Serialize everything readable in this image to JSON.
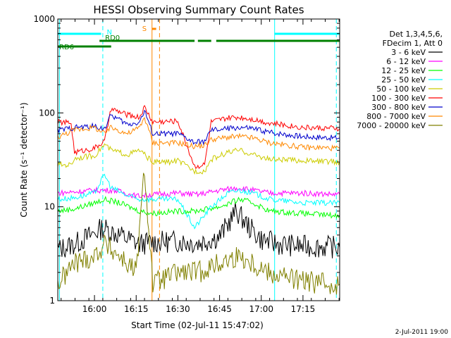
{
  "chart_data": {
    "type": "line",
    "title": "HESSI Observing Summary Count Rates",
    "xlabel": "Start Time (02-Jul-11 15:47:02)",
    "ylabel": "Count Rate (s⁻¹ detector⁻¹)",
    "yscale": "log",
    "ylim": [
      1,
      1000
    ],
    "xlim_minutes": [
      15.78,
      17.47
    ],
    "x_tick_labels": [
      "16:00",
      "16:15",
      "16:30",
      "16:45",
      "17:00",
      "17:15"
    ],
    "x_tick_values": [
      16.0,
      16.25,
      16.5,
      16.75,
      17.0,
      17.25
    ],
    "y_tick_labels": [
      "1",
      "10",
      "100",
      "1000"
    ],
    "y_tick_values": [
      1,
      10,
      100,
      1000
    ],
    "grid": false,
    "legend_placement": "right",
    "legend_header": [
      "Det 1,3,4,5,6,",
      "FDecim 1, Att 0"
    ],
    "series": [
      {
        "name": "3 - 6 keV",
        "color": "#000000",
        "points": [
          [
            15.78,
            3.5
          ],
          [
            15.88,
            4
          ],
          [
            15.98,
            5
          ],
          [
            16.05,
            6
          ],
          [
            16.15,
            5
          ],
          [
            16.27,
            4
          ],
          [
            16.35,
            4.2
          ],
          [
            16.5,
            4.3
          ],
          [
            16.62,
            4.1
          ],
          [
            16.75,
            4.8
          ],
          [
            16.85,
            9
          ],
          [
            16.93,
            6
          ],
          [
            17.0,
            4.5
          ],
          [
            17.1,
            4
          ],
          [
            17.25,
            3.8
          ],
          [
            17.47,
            3.7
          ]
        ]
      },
      {
        "name": "6 - 12 keV",
        "color": "#ff00ff",
        "points": [
          [
            15.78,
            14
          ],
          [
            15.9,
            14.5
          ],
          [
            16.0,
            15
          ],
          [
            16.12,
            15
          ],
          [
            16.25,
            13
          ],
          [
            16.35,
            13.5
          ],
          [
            16.5,
            14
          ],
          [
            16.62,
            13.5
          ],
          [
            16.75,
            15
          ],
          [
            16.87,
            16
          ],
          [
            16.95,
            15
          ],
          [
            17.05,
            14
          ],
          [
            17.25,
            14
          ],
          [
            17.47,
            13.5
          ]
        ]
      },
      {
        "name": "12 - 25 keV",
        "color": "#00ff00",
        "points": [
          [
            15.78,
            9
          ],
          [
            15.88,
            9.5
          ],
          [
            16.0,
            11
          ],
          [
            16.06,
            12
          ],
          [
            16.15,
            11
          ],
          [
            16.27,
            9
          ],
          [
            16.35,
            8.5
          ],
          [
            16.5,
            9
          ],
          [
            16.6,
            9
          ],
          [
            16.75,
            10
          ],
          [
            16.87,
            12
          ],
          [
            16.95,
            11
          ],
          [
            17.05,
            9
          ],
          [
            17.25,
            8.5
          ],
          [
            17.47,
            8
          ]
        ]
      },
      {
        "name": "25 - 50 keV",
        "color": "#00ffff",
        "points": [
          [
            15.78,
            12
          ],
          [
            15.88,
            12.5
          ],
          [
            16.0,
            14
          ],
          [
            16.06,
            22
          ],
          [
            16.1,
            16
          ],
          [
            16.2,
            13
          ],
          [
            16.27,
            12
          ],
          [
            16.35,
            12
          ],
          [
            16.5,
            12
          ],
          [
            16.6,
            6
          ],
          [
            16.7,
            10
          ],
          [
            16.8,
            14
          ],
          [
            16.87,
            15
          ],
          [
            16.95,
            14
          ],
          [
            17.05,
            12
          ],
          [
            17.25,
            11
          ],
          [
            17.47,
            11
          ]
        ]
      },
      {
        "name": "50 - 100 keV",
        "color": "#cccc00",
        "points": [
          [
            15.78,
            28
          ],
          [
            15.86,
            28
          ],
          [
            15.88,
            33
          ],
          [
            16.0,
            35
          ],
          [
            16.06,
            46
          ],
          [
            16.1,
            40
          ],
          [
            16.2,
            36
          ],
          [
            16.27,
            40
          ],
          [
            16.35,
            30
          ],
          [
            16.45,
            30
          ],
          [
            16.5,
            31
          ],
          [
            16.6,
            24
          ],
          [
            16.66,
            24
          ],
          [
            16.7,
            32
          ],
          [
            16.8,
            38
          ],
          [
            16.87,
            40
          ],
          [
            16.95,
            36
          ],
          [
            17.05,
            32
          ],
          [
            17.25,
            31
          ],
          [
            17.47,
            30
          ]
        ]
      },
      {
        "name": "100 - 300 keV",
        "color": "#ff0000",
        "points": [
          [
            15.78,
            80
          ],
          [
            15.86,
            78
          ],
          [
            15.88,
            38
          ],
          [
            16.0,
            42
          ],
          [
            16.06,
            50
          ],
          [
            16.1,
            110
          ],
          [
            16.2,
            95
          ],
          [
            16.27,
            90
          ],
          [
            16.3,
            115
          ],
          [
            16.35,
            80
          ],
          [
            16.5,
            82
          ],
          [
            16.6,
            27
          ],
          [
            16.66,
            28
          ],
          [
            16.7,
            80
          ],
          [
            16.8,
            88
          ],
          [
            16.87,
            90
          ],
          [
            16.95,
            86
          ],
          [
            17.05,
            78
          ],
          [
            17.25,
            70
          ],
          [
            17.47,
            68
          ]
        ]
      },
      {
        "name": "300 - 800 keV",
        "color": "#0000cc",
        "points": [
          [
            15.78,
            65
          ],
          [
            15.88,
            70
          ],
          [
            16.0,
            72
          ],
          [
            16.06,
            68
          ],
          [
            16.1,
            95
          ],
          [
            16.2,
            75
          ],
          [
            16.27,
            80
          ],
          [
            16.3,
            105
          ],
          [
            16.35,
            60
          ],
          [
            16.5,
            60
          ],
          [
            16.6,
            48
          ],
          [
            16.66,
            50
          ],
          [
            16.7,
            65
          ],
          [
            16.8,
            68
          ],
          [
            16.87,
            70
          ],
          [
            16.95,
            68
          ],
          [
            17.05,
            62
          ],
          [
            17.25,
            56
          ],
          [
            17.47,
            54
          ]
        ]
      },
      {
        "name": "800 - 7000 keV",
        "color": "#ff8800",
        "points": [
          [
            15.78,
            55
          ],
          [
            15.88,
            66
          ],
          [
            16.0,
            70
          ],
          [
            16.06,
            60
          ],
          [
            16.1,
            70
          ],
          [
            16.2,
            60
          ],
          [
            16.27,
            70
          ],
          [
            16.3,
            90
          ],
          [
            16.35,
            48
          ],
          [
            16.5,
            48
          ],
          [
            16.6,
            44
          ],
          [
            16.66,
            45
          ],
          [
            16.7,
            52
          ],
          [
            16.8,
            55
          ],
          [
            16.87,
            56
          ],
          [
            16.95,
            54
          ],
          [
            17.05,
            48
          ],
          [
            17.25,
            43
          ],
          [
            17.47,
            42
          ]
        ]
      },
      {
        "name": "7000 - 20000 keV",
        "color": "#808000",
        "points": [
          [
            15.78,
            1.5
          ],
          [
            15.88,
            2.5
          ],
          [
            16.0,
            3
          ],
          [
            16.06,
            4
          ],
          [
            16.15,
            3
          ],
          [
            16.25,
            2
          ],
          [
            16.3,
            25
          ],
          [
            16.35,
            1.5
          ],
          [
            16.5,
            2
          ],
          [
            16.62,
            2
          ],
          [
            16.75,
            2.5
          ],
          [
            16.87,
            3
          ],
          [
            16.95,
            2.5
          ],
          [
            17.05,
            2
          ],
          [
            17.25,
            1.6
          ],
          [
            17.47,
            1.5
          ]
        ]
      }
    ],
    "flags": [
      {
        "name": "RD0",
        "color": "#008000",
        "segments": [
          [
            16.03,
            16.1
          ]
        ]
      },
      {
        "name": "RD6",
        "color": "#008000",
        "segments": [
          [
            15.78,
            16.1
          ]
        ]
      },
      {
        "name": "",
        "color": "#008000",
        "segments": [
          [
            16.1,
            16.6
          ],
          [
            16.62,
            16.7
          ],
          [
            16.73,
            17.47
          ]
        ]
      },
      {
        "name": "N",
        "color": "#00ffff",
        "segments": [
          [
            15.78,
            16.04
          ],
          [
            17.08,
            17.47
          ]
        ]
      },
      {
        "name": "S",
        "color": "#ff8800",
        "segments": [
          [
            16.345,
            16.37
          ]
        ]
      }
    ],
    "markers": [
      {
        "color": "#00ffff",
        "style": "dashed",
        "x": 16.05
      },
      {
        "color": "#00ffff",
        "style": "dashed",
        "x": 17.45
      },
      {
        "color": "#00ffff",
        "style": "solid",
        "x": 17.08
      },
      {
        "color": "#00ffff",
        "style": "solid",
        "x": 15.79
      },
      {
        "color": "#ff8800",
        "style": "solid",
        "x": 16.345
      },
      {
        "color": "#ff8800",
        "style": "dashed",
        "x": 16.39
      }
    ]
  },
  "footer_date": "2-Jul-2011 19:00"
}
